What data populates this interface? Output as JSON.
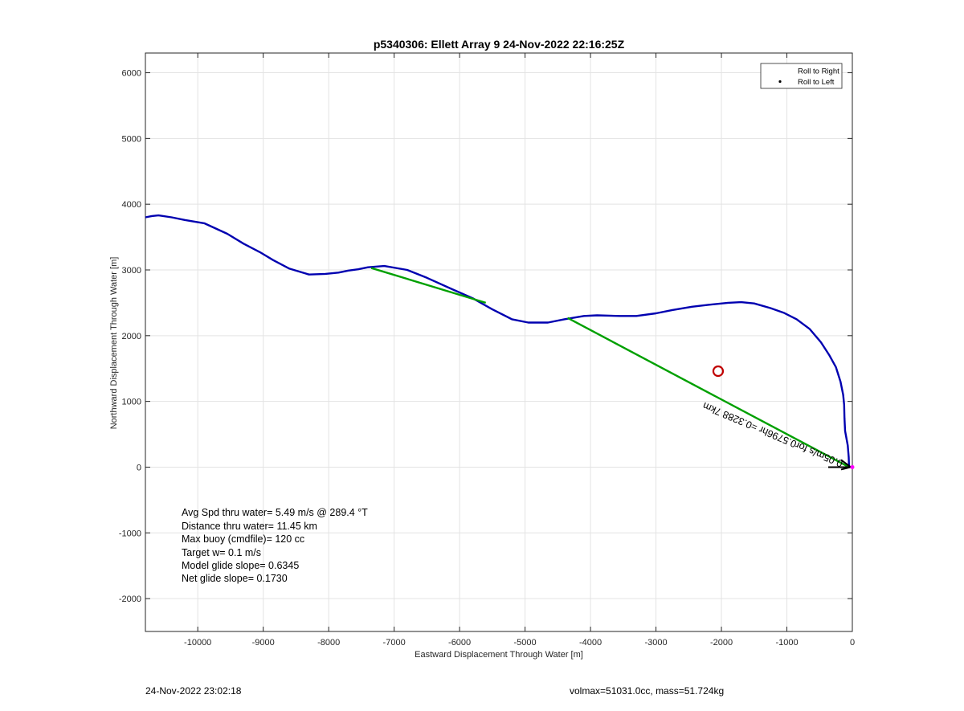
{
  "chart_data": {
    "type": "line",
    "title": "p5340306: Ellett Array 9 24-Nov-2022 22:16:25Z",
    "xlabel": "Eastward Displacement Through Water [m]",
    "ylabel": "Northward Displacement Through Water [m]",
    "xlim": [
      -10800,
      0
    ],
    "ylim": [
      -2500,
      6300
    ],
    "xticks": [
      -10000,
      -9000,
      -8000,
      -7000,
      -6000,
      -5000,
      -4000,
      -3000,
      -2000,
      -1000,
      0
    ],
    "xtick_labels": [
      "-10000",
      "-9000",
      "-8000",
      "-7000",
      "-6000",
      "-5000",
      "-4000",
      "-3000",
      "-2000",
      "-1000",
      "0"
    ],
    "yticks": [
      -2000,
      -1000,
      0,
      1000,
      2000,
      3000,
      4000,
      5000,
      6000
    ],
    "ytick_labels": [
      "-2000",
      "-1000",
      "0",
      "1000",
      "2000",
      "3000",
      "4000",
      "5000",
      "6000"
    ],
    "grid": true,
    "legend_location": "top-right",
    "legend": [
      {
        "label": "Roll to Right",
        "color": "#00a000",
        "style": "line"
      },
      {
        "label": "Roll to Left",
        "color": "#ff0000",
        "style": "dot"
      }
    ],
    "series": [
      {
        "color": "#0000b0",
        "x": [
          -50,
          -55,
          -70,
          -110,
          -120,
          -125,
          -140,
          -180,
          -250,
          -350,
          -480,
          -650,
          -850,
          -1050,
          -1250,
          -1500,
          -1700,
          -1900,
          -2200,
          -2450,
          -2750,
          -3000,
          -3300,
          -3550,
          -3900,
          -4100,
          -4400,
          -4650,
          -4950,
          -5200,
          -5500,
          -5800,
          -6100,
          -6500,
          -6800,
          -7150,
          -7400,
          -7550,
          -7700,
          -7850,
          -8050,
          -8300,
          -8600,
          -8850,
          -9050,
          -9300,
          -9550,
          -9900,
          -10200,
          -10400,
          -10600,
          -10700,
          -10800
        ],
        "y": [
          0,
          150,
          330,
          550,
          750,
          950,
          1100,
          1300,
          1520,
          1700,
          1900,
          2100,
          2250,
          2350,
          2420,
          2490,
          2510,
          2500,
          2470,
          2440,
          2390,
          2340,
          2300,
          2300,
          2310,
          2300,
          2250,
          2200,
          2200,
          2250,
          2400,
          2570,
          2700,
          2880,
          3000,
          3060,
          3040,
          3010,
          2990,
          2960,
          2940,
          2930,
          3020,
          3150,
          3270,
          3400,
          3550,
          3710,
          3760,
          3800,
          3830,
          3820,
          3800
        ]
      },
      {
        "name": "Roll to Right",
        "color": "#00a000",
        "segments": [
          {
            "x": [
              -7350,
              -5600
            ],
            "y": [
              3030,
              2500
            ]
          },
          {
            "x": [
              -4350,
              -50
            ],
            "y": [
              2270,
              0
            ]
          }
        ]
      }
    ],
    "target_marker": {
      "x": -2050,
      "y": 1460,
      "color": "#c00000"
    },
    "current_annotation": "0.05m/s for0.5796hr =0.3288 7km",
    "stats": [
      "Avg Spd thru water=  5.49 m/s @ 289.4 °T",
      "Distance thru water= 11.45 km",
      "Max buoy (cmdfile)= 120 cc",
      "Target w= 0.1 m/s",
      "Model glide slope= 0.6345",
      "Net glide slope= 0.1730"
    ]
  },
  "footer": {
    "timestamp": "24-Nov-2022 23:02:18",
    "vol_mass": "volmax=51031.0cc, mass=51.724kg"
  }
}
